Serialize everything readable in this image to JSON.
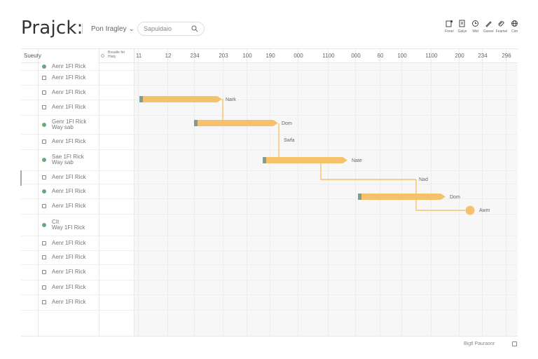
{
  "header": {
    "title": "Prajck:",
    "filter_label": "Pon Iragley",
    "search_placeholder": "Sapuldaio"
  },
  "toolbar": [
    {
      "icon": "add-note-icon",
      "label": "Fonel"
    },
    {
      "icon": "document-icon",
      "label": "Gaiye"
    },
    {
      "icon": "clock-icon",
      "label": "Wid"
    },
    {
      "icon": "pen-icon",
      "label": "Gseee"
    },
    {
      "icon": "attach-icon",
      "label": "Feamel"
    },
    {
      "icon": "globe-icon",
      "label": "Cim"
    }
  ],
  "table": {
    "first_column_label": "Sueuty",
    "assignee_header": "Bouatle fet Hiaty",
    "timeline_ticks": [
      "11",
      "12",
      "234",
      "203",
      "100",
      "190",
      "000",
      "1100",
      "000",
      "60",
      "100",
      "1100",
      "200",
      "234",
      "296"
    ],
    "rows": [
      {
        "label": "Aenr 1FI Rick",
        "status": "done",
        "sublabel": ""
      },
      {
        "label": "Aenr 1FI Rick",
        "status": "open",
        "sublabel": ""
      },
      {
        "label": "Aenr 1FI Rick",
        "status": "open",
        "sublabel": ""
      },
      {
        "label": "Aenr 1FI Rick",
        "status": "open",
        "sublabel": ""
      },
      {
        "label": "Genr 1FI Rick",
        "status": "done",
        "sublabel": "Way sab"
      },
      {
        "label": "Aenr 1FI Rick",
        "status": "open",
        "sublabel": ""
      },
      {
        "label": "Sae 1FI Rick",
        "status": "done",
        "sublabel": "Way sab"
      },
      {
        "label": "Aenr 1FI Rick",
        "status": "open",
        "sublabel": ""
      },
      {
        "label": "Aenr 1FI Rick",
        "status": "done",
        "sublabel": ""
      },
      {
        "label": "Aenr 1FI Rick",
        "status": "open",
        "sublabel": ""
      },
      {
        "label": "CIt",
        "status": "done",
        "sublabel": "Way 1FI Rick"
      },
      {
        "label": "Aenr 1FI Rick",
        "status": "open",
        "sublabel": ""
      },
      {
        "label": "Aenr 1FI Rick",
        "status": "open",
        "sublabel": ""
      },
      {
        "label": "Aenr 1FI Rick",
        "status": "open",
        "sublabel": ""
      },
      {
        "label": "Aenr 1FI Rick",
        "status": "open",
        "sublabel": ""
      },
      {
        "label": "Aenr 1FI Rick",
        "status": "open",
        "sublabel": ""
      }
    ]
  },
  "gantt": {
    "bar_color": "#f5c26b",
    "handle_color": "#7f9e8e",
    "bars": [
      {
        "label": "Nark"
      },
      {
        "label": "Dom"
      },
      {
        "label": "Nate"
      },
      {
        "label": "Dom"
      }
    ],
    "connector_labels": [
      "Swfa",
      "Nad"
    ],
    "milestone_label": "Awm"
  },
  "footer": {
    "label": "Bigtl Pauraonr"
  }
}
